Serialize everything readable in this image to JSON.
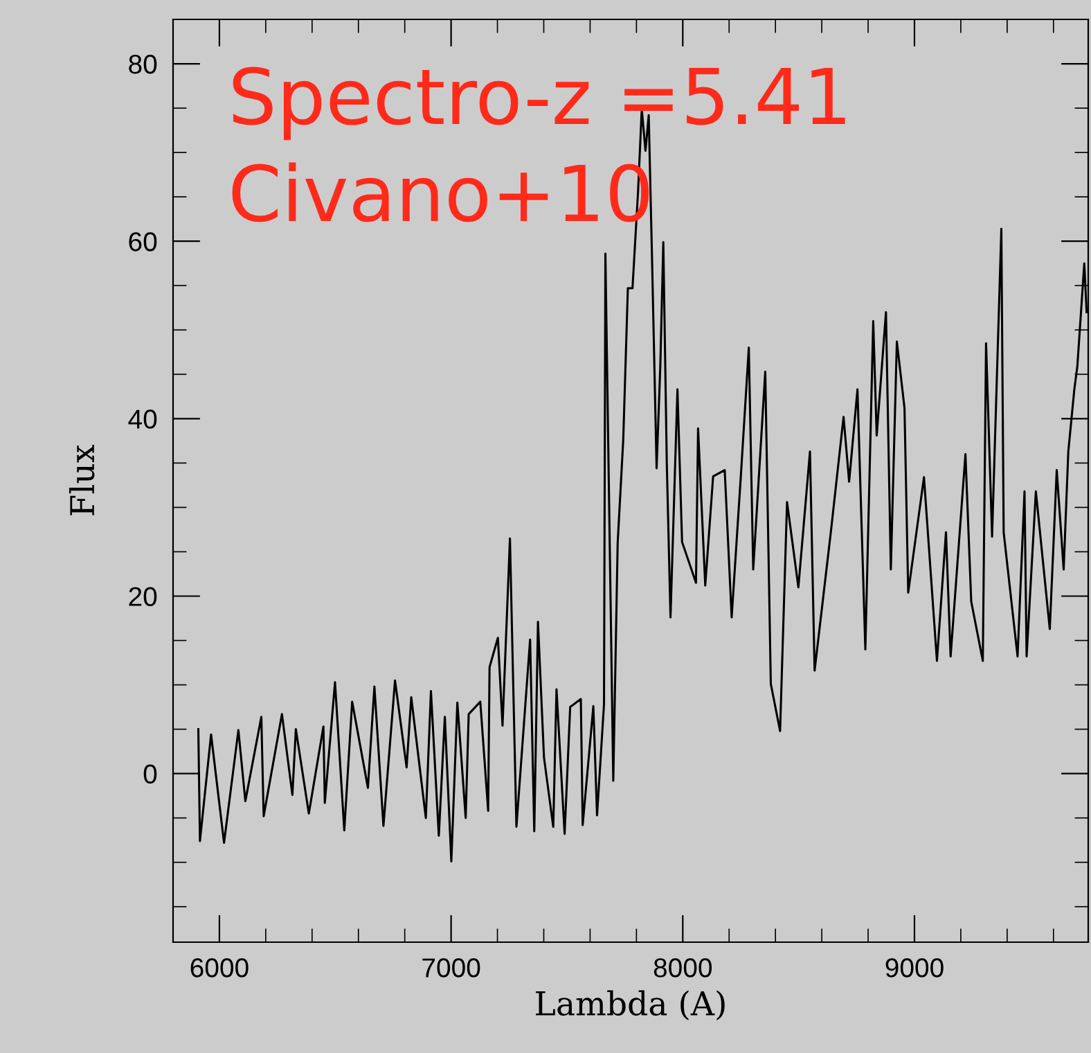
{
  "chart_data": {
    "type": "line",
    "xlabel": "Lambda (A)",
    "ylabel": "Flux",
    "annotations": [
      "Spectro-z =5.41",
      "Civano+10"
    ],
    "x": [
      5909,
      5916,
      5964,
      6020,
      6082,
      6112,
      6181,
      6191,
      6270,
      6315,
      6330,
      6386,
      6449,
      6455,
      6499,
      6539,
      6573,
      6641,
      6669,
      6708,
      6758,
      6808,
      6828,
      6891,
      6913,
      6947,
      6973,
      7001,
      7027,
      7063,
      7076,
      7126,
      7160,
      7166,
      7202,
      7222,
      7254,
      7282,
      7341,
      7359,
      7375,
      7401,
      7441,
      7455,
      7490,
      7514,
      7560,
      7568,
      7614,
      7630,
      7660,
      7666,
      7700,
      7719,
      7743,
      7763,
      7783,
      7807,
      7823,
      7839,
      7853,
      7867,
      7887,
      7903,
      7916,
      7931,
      7947,
      7977,
      7997,
      8057,
      8066,
      8097,
      8131,
      8181,
      8211,
      8251,
      8285,
      8304,
      8356,
      8380,
      8420,
      8450,
      8499,
      8549,
      8569,
      8639,
      8694,
      8718,
      8754,
      8788,
      8822,
      8837,
      8877,
      8898,
      8924,
      8957,
      8973,
      9041,
      9097,
      9136,
      9156,
      9220,
      9245,
      9295,
      9309,
      9335,
      9375,
      9385,
      9445,
      9475,
      9484,
      9524,
      9584,
      9614,
      9644,
      9664,
      9690,
      9703,
      9733,
      9743
    ],
    "series": [
      {
        "color": "#000000",
        "values": [
          5,
          -7.6,
          4.4,
          -7.8,
          4.9,
          -3.1,
          6.4,
          -4.8,
          6.7,
          -2.4,
          5,
          -4.5,
          5.3,
          -3.3,
          10.3,
          -6.4,
          8.1,
          -1.6,
          9.8,
          -5.9,
          10.5,
          0.7,
          8.6,
          -5,
          9.3,
          -7,
          6.4,
          -9.9,
          8,
          -5,
          6.7,
          8.1,
          -4.2,
          12,
          15.3,
          5.4,
          26.5,
          -6,
          15.1,
          -6.5,
          17.1,
          1.8,
          -6,
          9.5,
          -6.8,
          7.5,
          8.4,
          -5.8,
          7.6,
          -4.7,
          7.8,
          58.6,
          -0.8,
          26,
          37.6,
          54.7,
          54.7,
          65.6,
          74.9,
          70.2,
          74.2,
          58.4,
          34.4,
          45.9,
          59.9,
          35,
          17.6,
          43.3,
          26.1,
          21.5,
          38.9,
          21.2,
          33.5,
          34.2,
          17.6,
          33.7,
          48,
          23,
          45.3,
          10.1,
          4.8,
          30.6,
          21,
          36.3,
          11.6,
          27.2,
          40.2,
          32.9,
          43.3,
          14,
          51,
          38.1,
          52,
          23,
          48.7,
          41.2,
          20.4,
          33.4,
          12.7,
          27.2,
          13.2,
          36,
          19.4,
          12.7,
          48.5,
          26.7,
          61.4,
          27.2,
          13.2,
          31.8,
          13.2,
          31.8,
          16.3,
          34.2,
          23,
          36.3,
          43.3,
          45.9,
          57.5,
          52
        ]
      }
    ],
    "xlim": [
      5800,
      9750
    ],
    "ylim": [
      -19,
      85
    ],
    "xticks": [
      {
        "value": 5800,
        "label": null
      },
      6000,
      {
        "value": 6200,
        "label": null
      },
      {
        "value": 6400,
        "label": null
      },
      {
        "value": 6600,
        "label": null
      },
      {
        "value": 6800,
        "label": null
      },
      7000,
      {
        "value": 7200,
        "label": null
      },
      {
        "value": 7400,
        "label": null
      },
      {
        "value": 7600,
        "label": null
      },
      {
        "value": 7800,
        "label": null
      },
      8000,
      {
        "value": 8200,
        "label": null
      },
      {
        "value": 8400,
        "label": null
      },
      {
        "value": 8600,
        "label": null
      },
      {
        "value": 8800,
        "label": null
      },
      9000,
      {
        "value": 9200,
        "label": null
      },
      {
        "value": 9400,
        "label": null
      },
      {
        "value": 9600,
        "label": null
      }
    ],
    "yticks": [
      {
        "value": -15,
        "label": null
      },
      {
        "value": -10,
        "label": null
      },
      {
        "value": -5,
        "label": null
      },
      0,
      {
        "value": 5,
        "label": null
      },
      {
        "value": 10,
        "label": null
      },
      {
        "value": 15,
        "label": null
      },
      20,
      {
        "value": 25,
        "label": null
      },
      {
        "value": 30,
        "label": null
      },
      {
        "value": 35,
        "label": null
      },
      40,
      {
        "value": 45,
        "label": null
      },
      {
        "value": 50,
        "label": null
      },
      {
        "value": 55,
        "label": null
      },
      60,
      {
        "value": 65,
        "label": null
      },
      {
        "value": 70,
        "label": null
      },
      {
        "value": 75,
        "label": null
      },
      80
    ],
    "grid": false,
    "legend": false,
    "marker": "none",
    "line_style": "solid"
  }
}
